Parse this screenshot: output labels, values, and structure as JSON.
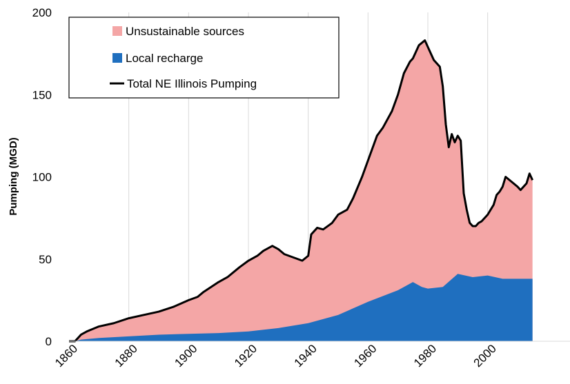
{
  "chart_data": {
    "type": "area",
    "title": "",
    "xlabel": "",
    "ylabel": "Pumping (MGD)",
    "xlim": [
      1860,
      2015
    ],
    "ylim": [
      0,
      200
    ],
    "x_ticks": [
      1860,
      1880,
      1900,
      1920,
      1940,
      1960,
      1980,
      2000
    ],
    "x_tick_labels": [
      "1860",
      "1880",
      "1900",
      "1920",
      "1940",
      "1960",
      "1980",
      "2000"
    ],
    "y_ticks": [
      0,
      50,
      100,
      150,
      200
    ],
    "y_tick_labels": [
      "0",
      "50",
      "100",
      "150",
      "200"
    ],
    "grid": "vertical",
    "legend_position": "top-left",
    "legend": [
      {
        "label": "Unsustainable sources",
        "kind": "area",
        "color": "#f4a6a6"
      },
      {
        "label": "Local recharge",
        "kind": "area",
        "color": "#1f6fbf"
      },
      {
        "label": "Total NE Illinois Pumping",
        "kind": "line",
        "color": "#000000"
      }
    ],
    "series": [
      {
        "name": "Total NE Illinois Pumping",
        "points": [
          [
            1860,
            0
          ],
          [
            1862,
            0
          ],
          [
            1864,
            4
          ],
          [
            1866,
            6
          ],
          [
            1870,
            9
          ],
          [
            1875,
            11
          ],
          [
            1880,
            14
          ],
          [
            1885,
            16
          ],
          [
            1890,
            18
          ],
          [
            1895,
            21
          ],
          [
            1900,
            25
          ],
          [
            1903,
            27
          ],
          [
            1905,
            30
          ],
          [
            1910,
            36
          ],
          [
            1913,
            39
          ],
          [
            1917,
            45
          ],
          [
            1920,
            49
          ],
          [
            1923,
            52
          ],
          [
            1925,
            55
          ],
          [
            1928,
            58
          ],
          [
            1930,
            56
          ],
          [
            1932,
            53
          ],
          [
            1935,
            51
          ],
          [
            1938,
            49
          ],
          [
            1940,
            52
          ],
          [
            1941,
            65
          ],
          [
            1943,
            69
          ],
          [
            1945,
            68
          ],
          [
            1948,
            72
          ],
          [
            1950,
            77
          ],
          [
            1953,
            80
          ],
          [
            1955,
            87
          ],
          [
            1958,
            100
          ],
          [
            1960,
            110
          ],
          [
            1963,
            125
          ],
          [
            1965,
            130
          ],
          [
            1968,
            140
          ],
          [
            1970,
            150
          ],
          [
            1972,
            163
          ],
          [
            1974,
            170
          ],
          [
            1975,
            172
          ],
          [
            1977,
            180
          ],
          [
            1979,
            183
          ],
          [
            1980,
            179
          ],
          [
            1982,
            171
          ],
          [
            1984,
            167
          ],
          [
            1985,
            155
          ],
          [
            1986,
            132
          ],
          [
            1987,
            118
          ],
          [
            1988,
            126
          ],
          [
            1989,
            121
          ],
          [
            1990,
            125
          ],
          [
            1991,
            122
          ],
          [
            1992,
            90
          ],
          [
            1993,
            80
          ],
          [
            1994,
            72
          ],
          [
            1995,
            70
          ],
          [
            1996,
            70
          ],
          [
            1997,
            72
          ],
          [
            1998,
            73
          ],
          [
            2000,
            77
          ],
          [
            2002,
            83
          ],
          [
            2003,
            89
          ],
          [
            2004,
            91
          ],
          [
            2005,
            94
          ],
          [
            2006,
            100
          ],
          [
            2008,
            97
          ],
          [
            2010,
            94
          ],
          [
            2011,
            92
          ],
          [
            2012,
            94
          ],
          [
            2013,
            96
          ],
          [
            2014,
            102
          ],
          [
            2015,
            98
          ]
        ]
      },
      {
        "name": "Local recharge",
        "points": [
          [
            1860,
            0
          ],
          [
            1862,
            0
          ],
          [
            1864,
            1
          ],
          [
            1870,
            2
          ],
          [
            1880,
            3
          ],
          [
            1890,
            4
          ],
          [
            1900,
            4.5
          ],
          [
            1910,
            5
          ],
          [
            1920,
            6
          ],
          [
            1930,
            8
          ],
          [
            1940,
            11
          ],
          [
            1950,
            16
          ],
          [
            1960,
            24
          ],
          [
            1970,
            31
          ],
          [
            1975,
            36
          ],
          [
            1978,
            33
          ],
          [
            1980,
            32
          ],
          [
            1985,
            33
          ],
          [
            1990,
            41
          ],
          [
            1995,
            39
          ],
          [
            2000,
            40
          ],
          [
            2005,
            38
          ],
          [
            2010,
            38
          ],
          [
            2015,
            38
          ]
        ]
      }
    ]
  }
}
